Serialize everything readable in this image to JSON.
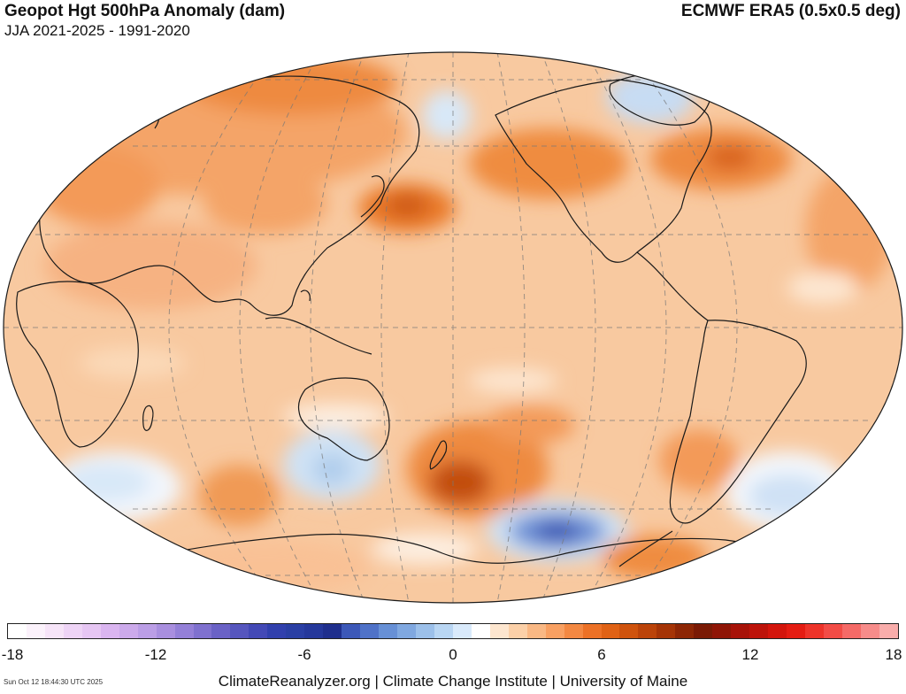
{
  "header": {
    "title": "Geopot Hgt 500hPa Anomaly (dam)",
    "subtitle": "JJA 2021-2025 - 1991-2020",
    "source": "ECMWF ERA5 (0.5x0.5 deg)"
  },
  "colors": {
    "ocean_background": "#f8c9a0",
    "land_outline": "#1a1a1a",
    "grid_line": "#777777"
  },
  "colorbar": {
    "ticks": [
      "-18",
      "-12",
      "-6",
      "0",
      "6",
      "12",
      "18"
    ],
    "min": -18,
    "max": 18,
    "colors": [
      "#ffffff",
      "#fbf2fb",
      "#f6e4f8",
      "#eed4f6",
      "#e6c6f3",
      "#dab5f0",
      "#ccaaeb",
      "#bb9ee6",
      "#a98fdf",
      "#9480d8",
      "#7f71cf",
      "#6a62c6",
      "#5656be",
      "#4349b6",
      "#3140ad",
      "#2a3fa4",
      "#25389b",
      "#1f2f8d",
      "#3c58b8",
      "#4f72c8",
      "#6790d6",
      "#80a8e0",
      "#9cc0ea",
      "#b9d6f3",
      "#d9eafb",
      "#ffffff",
      "#fde6cf",
      "#fbd0a8",
      "#f9b884",
      "#f8a062",
      "#f38842",
      "#ec7126",
      "#e06215",
      "#cf530d",
      "#bb4309",
      "#a53406",
      "#8d2605",
      "#7a1a05",
      "#8f1506",
      "#a71208",
      "#bd130a",
      "#d3150c",
      "#e41c12",
      "#ed3329",
      "#f24c46",
      "#f56a67",
      "#f78c8a",
      "#f9adab"
    ]
  },
  "footer": {
    "credit": "ClimateReanalyzer.org | Climate Change Institute | University of Maine",
    "timestamp": "Sun Oct 12 18:44:30 UTC 2025"
  }
}
